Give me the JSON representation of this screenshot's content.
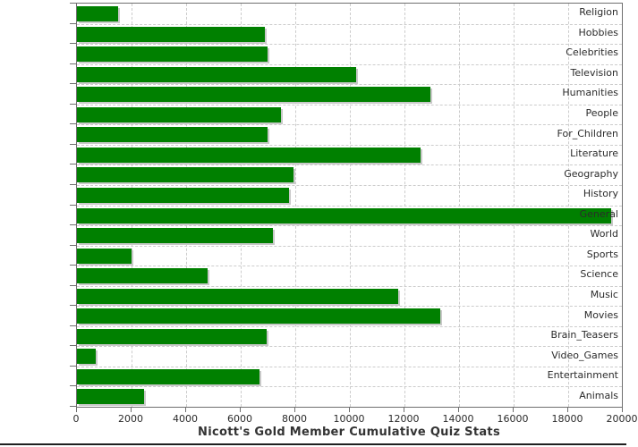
{
  "chart_data": {
    "type": "bar",
    "orientation": "horizontal",
    "title": "Nicott's Gold Member Cumulative Quiz Stats",
    "categories": [
      "Religion",
      "Hobbies",
      "Celebrities",
      "Television",
      "Humanities",
      "People",
      "For_Children",
      "Literature",
      "Geography",
      "History",
      "General",
      "World",
      "Sports",
      "Science",
      "Music",
      "Movies",
      "Brain_Teasers",
      "Video_Games",
      "Entertainment",
      "Animals"
    ],
    "values": [
      1520,
      6890,
      6990,
      10220,
      12950,
      7470,
      6990,
      12590,
      7950,
      7770,
      19570,
      7180,
      2000,
      4790,
      11780,
      13310,
      6940,
      680,
      6690,
      2460
    ],
    "xlabel": "",
    "ylabel": "",
    "xlim": [
      0,
      20000
    ],
    "x_tick_interval": 2000,
    "x_tick_labels": [
      "0",
      "2000",
      "4000",
      "6000",
      "8000",
      "10000",
      "12000",
      "14000",
      "16000",
      "18000",
      "20000"
    ],
    "grid": "dashed",
    "legend": "none",
    "colors": {
      "bar": "#008000",
      "bar_shadow": "#c9c9c9",
      "gridline": "#cccccc",
      "axis_border": "#6f6f6f",
      "tick_text": "#2b2b2b",
      "title_text": "#333333",
      "background": "#ffffff",
      "bottom_rule": "#1f1f1f"
    }
  }
}
